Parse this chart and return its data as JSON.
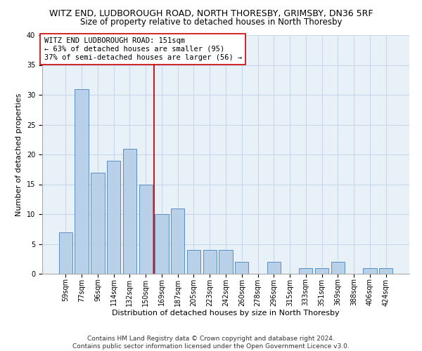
{
  "title_line1": "WITZ END, LUDBOROUGH ROAD, NORTH THORESBY, GRIMSBY, DN36 5RF",
  "title_line2": "Size of property relative to detached houses in North Thoresby",
  "xlabel": "Distribution of detached houses by size in North Thoresby",
  "ylabel": "Number of detached properties",
  "categories": [
    "59sqm",
    "77sqm",
    "96sqm",
    "114sqm",
    "132sqm",
    "150sqm",
    "169sqm",
    "187sqm",
    "205sqm",
    "223sqm",
    "242sqm",
    "260sqm",
    "278sqm",
    "296sqm",
    "315sqm",
    "333sqm",
    "351sqm",
    "369sqm",
    "388sqm",
    "406sqm",
    "424sqm"
  ],
  "values": [
    7,
    31,
    17,
    19,
    21,
    15,
    10,
    11,
    4,
    4,
    4,
    2,
    0,
    2,
    0,
    1,
    1,
    2,
    0,
    1,
    1
  ],
  "bar_color": "#b8d0e8",
  "bar_edge_color": "#5a8fc0",
  "reference_line_index": 5,
  "reference_line_color": "#cc0000",
  "annotation_box_text": "WITZ END LUDBOROUGH ROAD: 151sqm\n← 63% of detached houses are smaller (95)\n37% of semi-detached houses are larger (56) →",
  "annotation_box_color": "#ffffff",
  "annotation_box_edge_color": "#cc0000",
  "ylim": [
    0,
    40
  ],
  "yticks": [
    0,
    5,
    10,
    15,
    20,
    25,
    30,
    35,
    40
  ],
  "grid_color": "#c8d8e8",
  "background_color": "#e8f0f8",
  "footnote": "Contains HM Land Registry data © Crown copyright and database right 2024.\nContains public sector information licensed under the Open Government Licence v3.0.",
  "title_fontsize": 9,
  "subtitle_fontsize": 8.5,
  "axis_label_fontsize": 8,
  "tick_fontsize": 7,
  "annotation_fontsize": 7.5,
  "footnote_fontsize": 6.5
}
